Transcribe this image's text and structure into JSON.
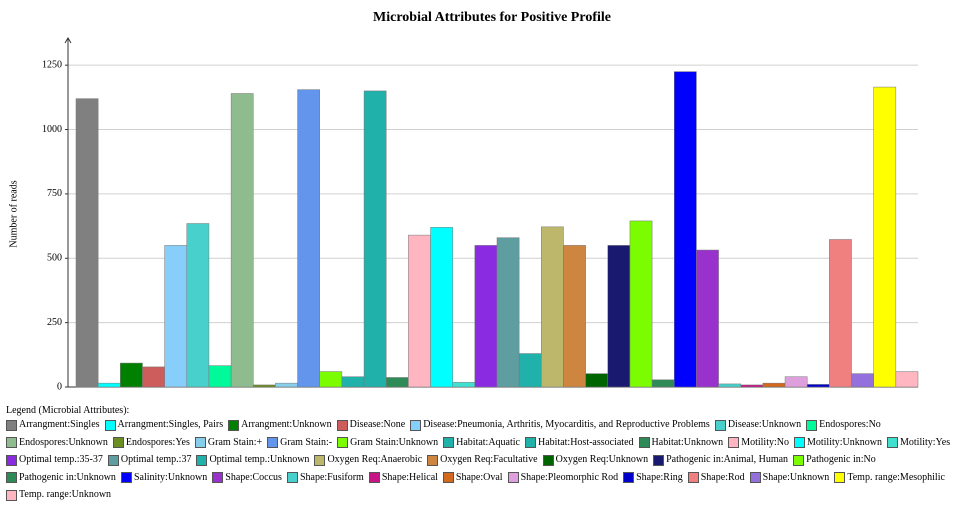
{
  "chart_data": {
    "type": "bar",
    "title": "Microbial Attributes for Positive Profile",
    "y_label": "Number of reads",
    "legend_title": "Legend (Microbial Attributes):",
    "categories": [
      "Arrangment:Singles",
      "Arrangment:Singles, Pairs",
      "Arrangment:Unknown",
      "Disease:None",
      "Disease:Pneumonia, Arthritis, Myocarditis, and Reproductive Problems",
      "Disease:Unknown",
      "Endospores:No",
      "Endospores:Unknown",
      "Endospores:Yes",
      "Gram Stain:+",
      "Gram Stain:-",
      "Gram Stain:Unknown",
      "Habitat:Aquatic",
      "Habitat:Host-associated",
      "Habitat:Unknown",
      "Motility:No",
      "Motility:Unknown",
      "Motility:Yes",
      "Optimal temp.:35-37",
      "Optimal temp.:37",
      "Optimal temp.:Unknown",
      "Oxygen Req:Anaerobic",
      "Oxygen Req:Facultative",
      "Oxygen Req:Unknown",
      "Pathogenic in:Animal, Human",
      "Pathogenic in:No",
      "Pathogenic in:Unknown",
      "Salinity:Unknown",
      "Shape:Coccus",
      "Shape:Fusiform",
      "Shape:Helical",
      "Shape:Oval",
      "Shape:Pleomorphic Rod",
      "Shape:Ring",
      "Shape:Rod",
      "Shape:Unknown",
      "Temp. range:Mesophilic",
      "Temp. range:Unknown"
    ],
    "values": [
      1120,
      15,
      93,
      78,
      550,
      635,
      83,
      1140,
      8,
      15,
      1155,
      60,
      40,
      1150,
      37,
      590,
      620,
      18,
      550,
      580,
      130,
      622,
      550,
      52,
      550,
      645,
      28,
      1225,
      532,
      12,
      8,
      15,
      40,
      10,
      573,
      52,
      1165,
      60
    ],
    "colors": [
      "#808080",
      "#00ffff",
      "#008000",
      "#cd5c5c",
      "#87cefa",
      "#48d1cc",
      "#00fa9a",
      "#8fbc8f",
      "#6b8e23",
      "#87ceeb",
      "#6495ed",
      "#7cfc00",
      "#20b2aa",
      "#20b2aa",
      "#2e8b57",
      "#ffb6c1",
      "#00ffff",
      "#40e0d0",
      "#8a2be2",
      "#5f9ea0",
      "#20b2aa",
      "#bdb76b",
      "#cd853f",
      "#006400",
      "#191970",
      "#7cfc00",
      "#2e8b57",
      "#0000ff",
      "#9932cc",
      "#48d1cc",
      "#c71585",
      "#d2691e",
      "#dda0dd",
      "#0000cd",
      "#f08080",
      "#9370db",
      "#ffff00",
      "#ffb6c1"
    ],
    "ylim": [
      0,
      1340
    ],
    "yticks": [
      0,
      250,
      500,
      750,
      1000,
      1250
    ],
    "grid": true
  }
}
